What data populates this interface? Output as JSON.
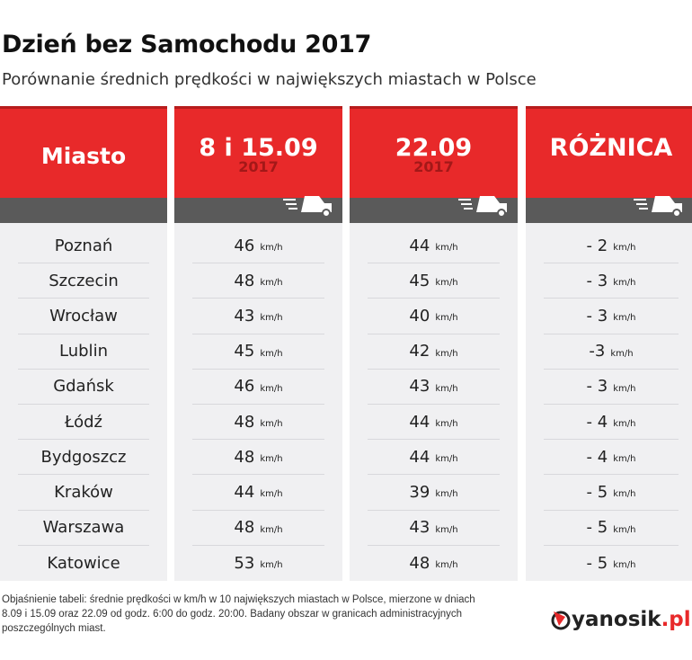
{
  "title": "Dzień bez Samochodu 2017",
  "subtitle": "Porównanie średnich prędkości w największych miastach w Polsce",
  "chart_data": {
    "type": "table",
    "columns": [
      {
        "label": "Miasto",
        "sub": ""
      },
      {
        "label": "8 i 15.09",
        "sub": "2017"
      },
      {
        "label": "22.09",
        "sub": "2017"
      },
      {
        "label": "RÓŻNICA",
        "sub": ""
      }
    ],
    "unit": "km/h",
    "rows": [
      {
        "city": "Poznań",
        "a": "46",
        "b": "44",
        "diff": "- 2"
      },
      {
        "city": "Szczecin",
        "a": "48",
        "b": "45",
        "diff": "- 3"
      },
      {
        "city": "Wrocław",
        "a": "43",
        "b": "40",
        "diff": "- 3"
      },
      {
        "city": "Lublin",
        "a": "45",
        "b": "42",
        "diff": "-3"
      },
      {
        "city": "Gdańsk",
        "a": "46",
        "b": "43",
        "diff": "- 3"
      },
      {
        "city": "Łódź",
        "a": "48",
        "b": "44",
        "diff": "- 4"
      },
      {
        "city": "Bydgoszcz",
        "a": "48",
        "b": "44",
        "diff": "- 4"
      },
      {
        "city": "Kraków",
        "a": "44",
        "b": "39",
        "diff": "- 5"
      },
      {
        "city": "Warszawa",
        "a": "48",
        "b": "43",
        "diff": "- 5"
      },
      {
        "city": "Katowice",
        "a": "53",
        "b": "48",
        "diff": "- 5"
      }
    ]
  },
  "note": "Objaśnienie tabeli: średnie prędkości w km/h w 10 największych miastach w Polsce, mierzone w dniach 8.09 i 15.09 oraz 22.09 od godz. 6:00 do godz. 20:00. Badany obszar w granicach administracyjnych poszczególnych miast.",
  "logo": {
    "name": "yanosik",
    "tld": ".pl"
  },
  "colors": {
    "red": "#e8292a",
    "dark": "#5a5a5a",
    "body": "#f0f0f2"
  }
}
